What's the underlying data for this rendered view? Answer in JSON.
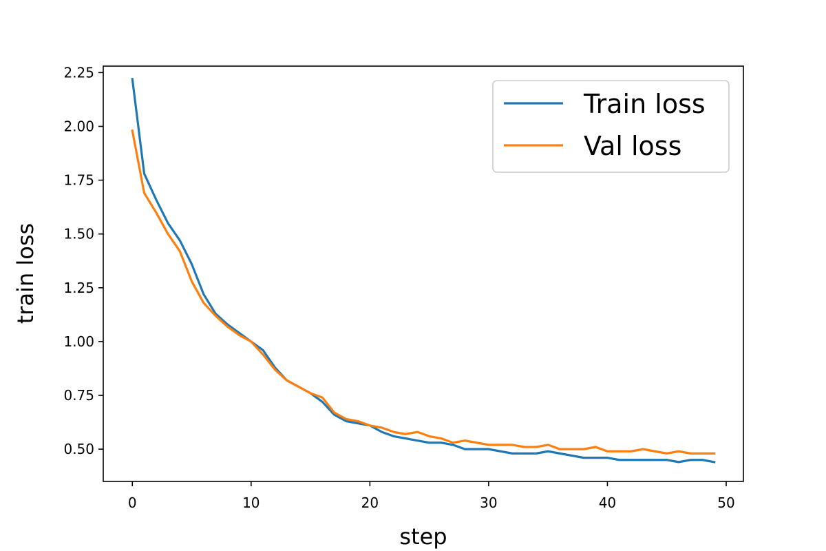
{
  "chart_data": {
    "type": "line",
    "title": "",
    "xlabel": "step",
    "ylabel": "train loss",
    "xlim": [
      -2.45,
      51.45
    ],
    "ylim": [
      0.35,
      2.28
    ],
    "xticks": [
      0,
      10,
      20,
      30,
      40,
      50
    ],
    "yticks": [
      0.5,
      0.75,
      1.0,
      1.25,
      1.5,
      1.75,
      2.0,
      2.25
    ],
    "xtick_labels": [
      "0",
      "10",
      "20",
      "30",
      "40",
      "50"
    ],
    "ytick_labels": [
      "0.50",
      "0.75",
      "1.00",
      "1.25",
      "1.50",
      "1.75",
      "2.00",
      "2.25"
    ],
    "grid": false,
    "legend_position": "top-right",
    "x": [
      0,
      1,
      2,
      3,
      4,
      5,
      6,
      7,
      8,
      9,
      10,
      11,
      12,
      13,
      14,
      15,
      16,
      17,
      18,
      19,
      20,
      21,
      22,
      23,
      24,
      25,
      26,
      27,
      28,
      29,
      30,
      31,
      32,
      33,
      34,
      35,
      36,
      37,
      38,
      39,
      40,
      41,
      42,
      43,
      44,
      45,
      46,
      47,
      48,
      49
    ],
    "series": [
      {
        "name": "Train loss",
        "color": "#1f77b4",
        "values": [
          2.22,
          1.78,
          1.66,
          1.55,
          1.47,
          1.36,
          1.22,
          1.13,
          1.08,
          1.04,
          1.0,
          0.96,
          0.88,
          0.82,
          0.79,
          0.76,
          0.72,
          0.66,
          0.63,
          0.62,
          0.61,
          0.58,
          0.56,
          0.55,
          0.54,
          0.53,
          0.53,
          0.52,
          0.5,
          0.5,
          0.5,
          0.49,
          0.48,
          0.48,
          0.48,
          0.49,
          0.48,
          0.47,
          0.46,
          0.46,
          0.46,
          0.45,
          0.45,
          0.45,
          0.45,
          0.45,
          0.44,
          0.45,
          0.45,
          0.44
        ]
      },
      {
        "name": "Val loss",
        "color": "#ff7f0e",
        "values": [
          1.98,
          1.69,
          1.6,
          1.5,
          1.42,
          1.28,
          1.18,
          1.12,
          1.07,
          1.03,
          1.0,
          0.94,
          0.87,
          0.82,
          0.79,
          0.76,
          0.74,
          0.67,
          0.64,
          0.63,
          0.61,
          0.6,
          0.58,
          0.57,
          0.58,
          0.56,
          0.55,
          0.53,
          0.54,
          0.53,
          0.52,
          0.52,
          0.52,
          0.51,
          0.51,
          0.52,
          0.5,
          0.5,
          0.5,
          0.51,
          0.49,
          0.49,
          0.49,
          0.5,
          0.49,
          0.48,
          0.49,
          0.48,
          0.48,
          0.48
        ]
      }
    ]
  }
}
